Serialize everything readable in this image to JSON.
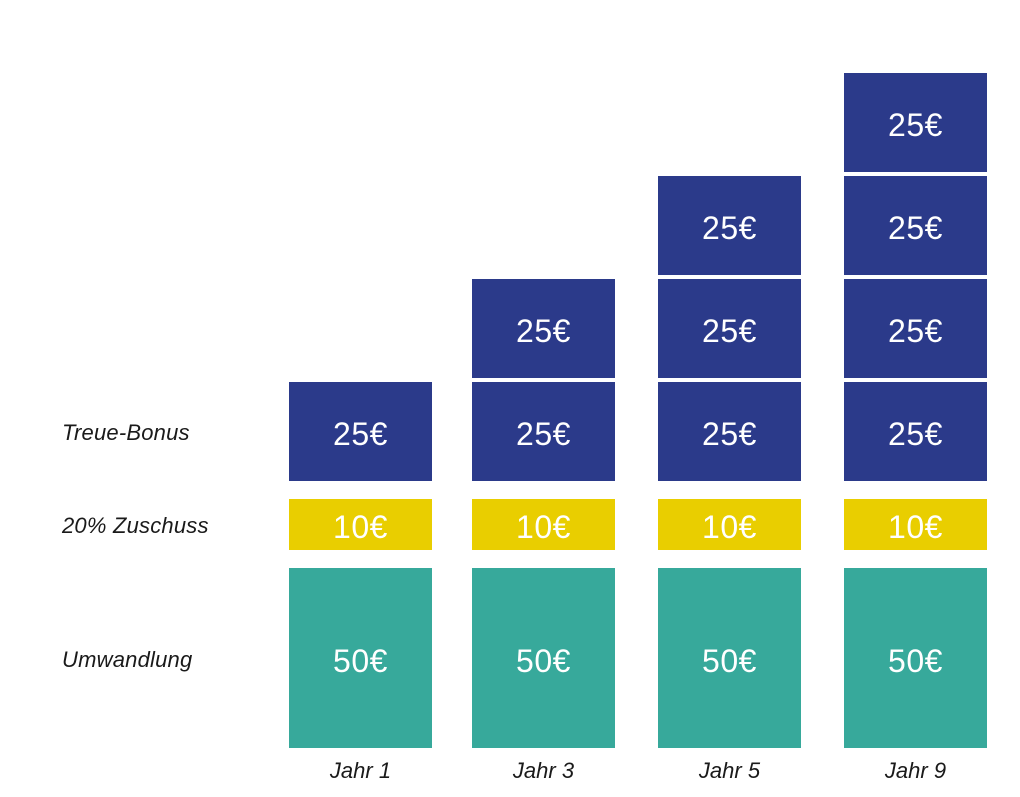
{
  "chart_data": {
    "type": "bar",
    "stacked": true,
    "title": "",
    "categories": [
      "Jahr 1",
      "Jahr 3",
      "Jahr 5",
      "Jahr 9"
    ],
    "series": [
      {
        "name": "Treue-Bonus",
        "color": "#2B3A8A",
        "segment_value": 25,
        "segment_label": "25€",
        "segments_per_category": [
          1,
          2,
          3,
          4
        ],
        "totals": [
          25,
          50,
          75,
          100
        ]
      },
      {
        "name": "20% Zuschuss",
        "color": "#E9CE00",
        "segment_value": 10,
        "segment_label": "10€",
        "segments_per_category": [
          1,
          1,
          1,
          1
        ],
        "totals": [
          10,
          10,
          10,
          10
        ]
      },
      {
        "name": "Umwandlung",
        "color": "#37A99B",
        "segment_value": 50,
        "segment_label": "50€",
        "segments_per_category": [
          1,
          1,
          1,
          1
        ],
        "totals": [
          50,
          50,
          50,
          50
        ]
      }
    ],
    "unit": "€",
    "value_label_color": "#FFFFFF",
    "axis_label_color": "#1A1A1A",
    "background": "#FFFFFF",
    "grid": false,
    "legend_position": "row-labels-left",
    "x_axis_label": "",
    "y_axis_label": ""
  }
}
